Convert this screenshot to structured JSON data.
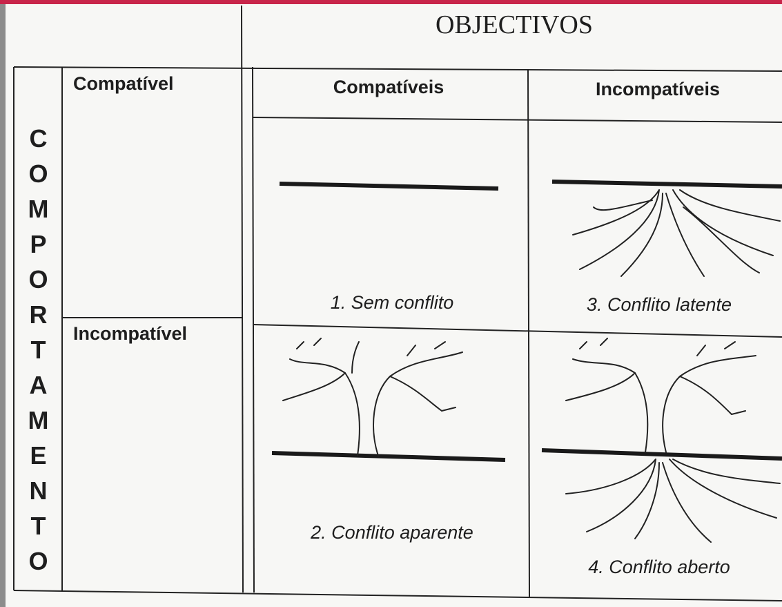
{
  "header": {
    "title": "OBJECTIVOS",
    "columns": [
      "Compatíveis",
      "Incompatíveis"
    ]
  },
  "side": {
    "title": "COMPORTAMENTO",
    "rows": [
      "Compatível",
      "Incompatível"
    ]
  },
  "cells": [
    "1. Sem conflito",
    "3. Conflito latente",
    "2. Conflito aparente",
    "4. Conflito aberto"
  ]
}
